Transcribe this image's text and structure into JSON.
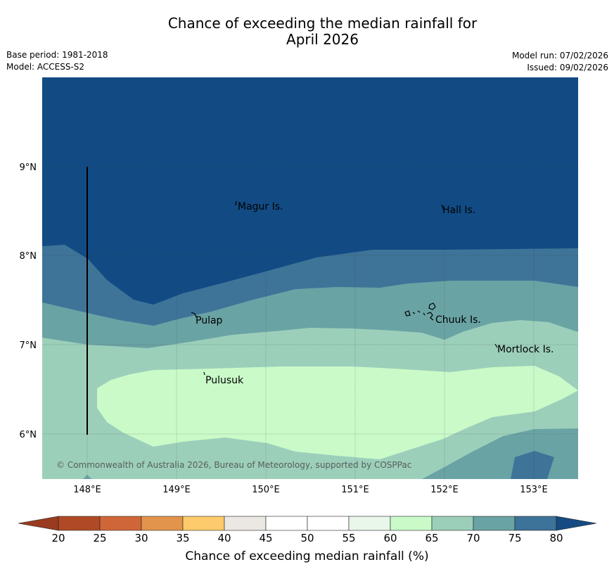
{
  "title": {
    "line1": "Chance of exceeding the median rainfall for",
    "line2": "April 2026"
  },
  "meta": {
    "base_period": "Base period: 1981-2018",
    "model": "Model: ACCESS-S2",
    "model_run": "Model run: 07/02/2026",
    "issued": "Issued: 09/02/2026"
  },
  "map": {
    "x_ticks": [
      "148°E",
      "149°E",
      "150°E",
      "151°E",
      "152°E",
      "153°E"
    ],
    "y_ticks": [
      "9°N",
      "8°N",
      "7°N",
      "6°N"
    ],
    "places": {
      "magur": "Magur Is.",
      "hall": "Hall Is.",
      "pulap": "Pulap",
      "chuuk": "Chuuk Is.",
      "mortlock": "Mortlock Is.",
      "pulusuk": "Pulusuk"
    },
    "copyright": "© Commonwealth of Australia 2026, Bureau of Meteorology, supported by COSPPac"
  },
  "colorbar": {
    "label": "Chance of exceeding median rainfall (%)",
    "ticks": [
      "20",
      "25",
      "30",
      "35",
      "40",
      "45",
      "50",
      "55",
      "60",
      "65",
      "70",
      "75",
      "80"
    ],
    "colors": [
      "#b04a26",
      "#cf6637",
      "#e2944a",
      "#fdcb6b",
      "#ebe8e3",
      "#ffffff",
      "#ffffff",
      "#e9f6ea",
      "#c9fac8",
      "#9ccfba",
      "#6aa3a4",
      "#3d7299"
    ],
    "under_color": "#983b1f",
    "over_color": "#154b82"
  }
}
